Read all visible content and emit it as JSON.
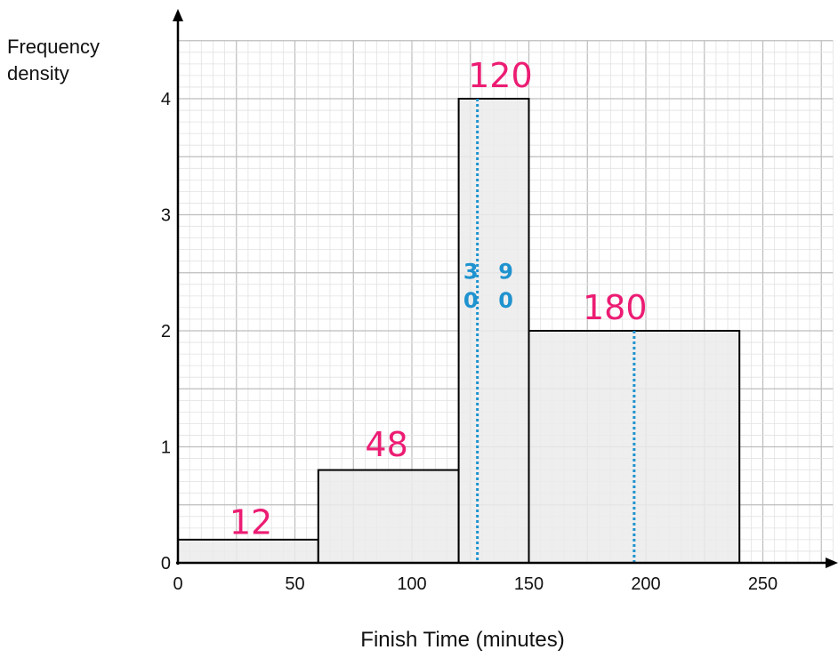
{
  "chart_data": {
    "type": "bar",
    "subtype": "histogram",
    "ylabel_lines": [
      "Frequency",
      "density"
    ],
    "xlabel": "Finish Time (minutes)",
    "xlim": [
      0,
      280
    ],
    "ylim": [
      0,
      4.5
    ],
    "x_ticks": [
      "0",
      "50",
      "100",
      "150",
      "200",
      "250"
    ],
    "x_tick_values": [
      0,
      50,
      100,
      150,
      200,
      250
    ],
    "y_ticks": [
      "0",
      "1",
      "2",
      "3",
      "4"
    ],
    "y_tick_values": [
      0,
      1,
      2,
      3,
      4
    ],
    "grid": true,
    "bars": [
      {
        "x_start": 0,
        "x_end": 60,
        "frequency_density": 0.2
      },
      {
        "x_start": 60,
        "x_end": 120,
        "frequency_density": 0.8
      },
      {
        "x_start": 120,
        "x_end": 150,
        "frequency_density": 4
      },
      {
        "x_start": 150,
        "x_end": 240,
        "frequency_density": 2
      }
    ],
    "annotations": [
      {
        "text": "12",
        "x": 22,
        "y": 0.25,
        "color": "#ec1c73"
      },
      {
        "text": "48",
        "x": 80,
        "y": 0.92,
        "color": "#ec1c73"
      },
      {
        "text": "120",
        "x": 124,
        "y": 4.1,
        "color": "#ec1c73"
      },
      {
        "text": "180",
        "x": 173,
        "y": 2.1,
        "color": "#ec1c73"
      },
      {
        "text": "3",
        "x": 122,
        "y": 2.45,
        "color": "#1f93cf"
      },
      {
        "text": "0",
        "x": 122,
        "y": 2.2,
        "color": "#1f93cf"
      },
      {
        "text": "9",
        "x": 137,
        "y": 2.45,
        "color": "#1f93cf"
      },
      {
        "text": "0",
        "x": 137,
        "y": 2.2,
        "color": "#1f93cf"
      }
    ],
    "reference_lines": [
      {
        "x": 128,
        "y_from": 0,
        "y_to": 4,
        "style": "dotted",
        "color": "#1f93cf"
      },
      {
        "x": 195,
        "y_from": 0,
        "y_to": 2,
        "style": "dotted",
        "color": "#1f93cf"
      }
    ],
    "colors": {
      "bar_fill": "#ebebeb",
      "bar_stroke": "#000000",
      "grid_major": "#bdbdbd",
      "grid_minor": "#e2e2e2"
    }
  }
}
